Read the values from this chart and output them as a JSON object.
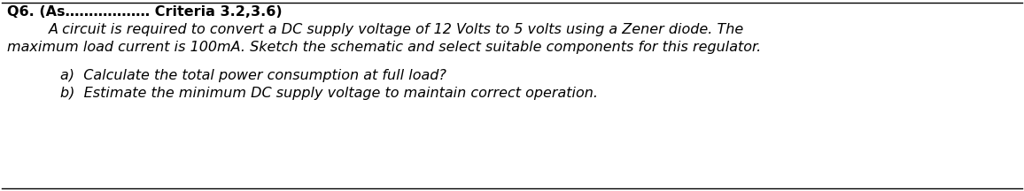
{
  "bg_color": "#ffffff",
  "border_color": "#000000",
  "line1_bold": "Q6. (As",
  "line1_dots": "...........",
  "line1_rest": " Criteria 3.2,3.6)",
  "line2": "    A circuit is required to convert a DC supply voltage of 12 Volts to 5 volts using a Zener diode. The",
  "line3": "maximum load current is 100mA. Sketch the schematic and select suitable components for this regulator.",
  "line4a": "a)  Calculate the total power consumption at full load?",
  "line4b": "b)  Estimate the minimum DC supply voltage to maintain correct operation.",
  "header_fontsize": 11.5,
  "body_fontsize": 11.5,
  "figwidth": 11.56,
  "figheight": 2.16,
  "dpi": 100
}
